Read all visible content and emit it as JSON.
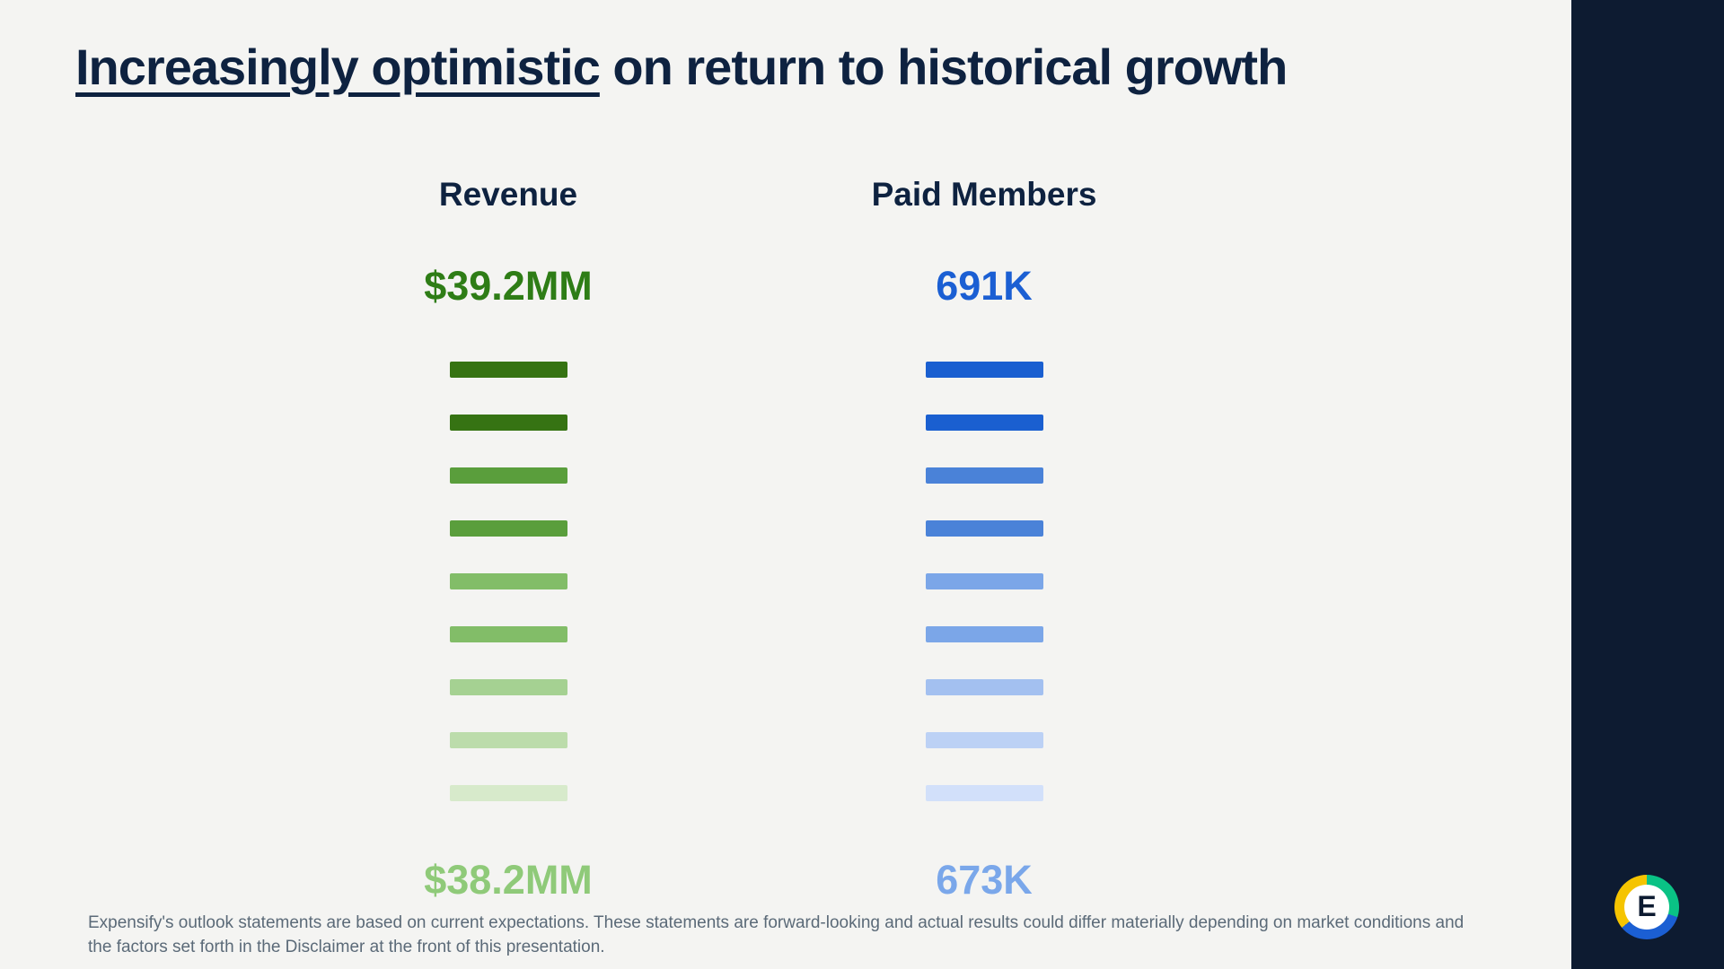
{
  "title": {
    "underlined": "Increasingly optimistic",
    "rest": " on return to historical growth"
  },
  "columns": [
    {
      "header": "Revenue",
      "top_value": "$39.2MM",
      "bottom_value": "$38.2MM",
      "top_color": "#2e7d16",
      "bottom_color": "#8fca79",
      "bar_name": "revenue-bar",
      "bar_colors": [
        "#367313",
        "#367313",
        "#5a9e3c",
        "#5a9e3c",
        "#82bd68",
        "#82bd68",
        "#a5d192",
        "#bcdcab",
        "#d7eacb"
      ]
    },
    {
      "header": "Paid Members",
      "top_value": "691K",
      "bottom_value": "673K",
      "top_color": "#1b5fd3",
      "bottom_color": "#7aa7ea",
      "bar_name": "paid-members-bar",
      "bar_colors": [
        "#1a5fd0",
        "#1a5fd0",
        "#4a82d8",
        "#4a82d8",
        "#7ba6e8",
        "#7ba6e8",
        "#a3c0f0",
        "#bcd1f5",
        "#d2e0fa"
      ]
    }
  ],
  "disclaimer": "Expensify's outlook statements are based on current expectations. These statements are forward-looking and actual results could differ materially depending on market conditions and the factors set forth in the Disclaimer at the front of this presentation.",
  "logo": {
    "letter": "E"
  },
  "colors": {
    "background": "#f4f4f2",
    "side_band": "#0d1b31",
    "title_text": "#0e2240",
    "disclaimer_text": "#5b6a78",
    "logo_yellow": "#f5c400",
    "logo_blue": "#1b5fd3",
    "logo_green": "#0ac285"
  },
  "chart_data": [
    {
      "type": "bar",
      "title": "Revenue",
      "subtype": "guidance-range-fade-stack",
      "range_high_label": "$39.2MM",
      "range_low_label": "$38.2MM",
      "values": [
        39.2,
        38.2
      ],
      "unit": "USD millions",
      "bar_count": 9,
      "legend_position": "none",
      "grid": false
    },
    {
      "type": "bar",
      "title": "Paid Members",
      "subtype": "guidance-range-fade-stack",
      "range_high_label": "691K",
      "range_low_label": "673K",
      "values": [
        691,
        673
      ],
      "unit": "thousands of members",
      "bar_count": 9,
      "legend_position": "none",
      "grid": false
    }
  ]
}
